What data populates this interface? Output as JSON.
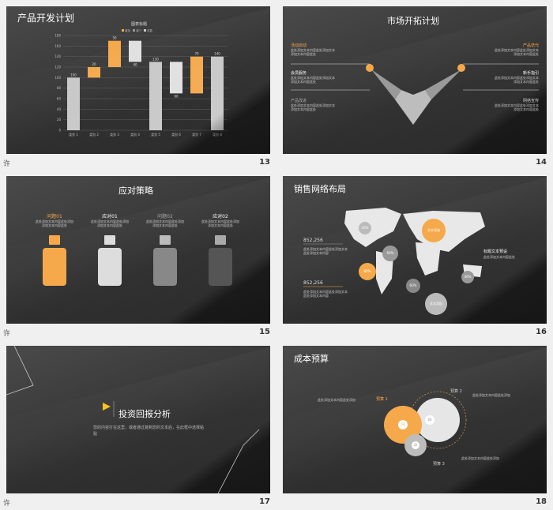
{
  "slides": [
    {
      "number": "13",
      "title": "产品开发计划",
      "footer": "许"
    },
    {
      "number": "14",
      "title": "市场开拓计划",
      "footer": "许"
    },
    {
      "number": "15",
      "title": "应对策略",
      "footer": "许"
    },
    {
      "number": "16",
      "title": "销售网络布局",
      "footer": "许"
    },
    {
      "number": "17",
      "title": "投资回报分析",
      "footer": "许"
    },
    {
      "number": "18",
      "title": "成本预算",
      "footer": "许"
    }
  ],
  "chart_data": {
    "type": "bar",
    "title": "图表标题",
    "legend": [
      "增加",
      "减少",
      "总数"
    ],
    "categories": [
      "类别 1",
      "类别 2",
      "类别 3",
      "类别 4",
      "类别 5",
      "类别 6",
      "类别 7",
      "类别 8"
    ],
    "labels": [
      "100",
      "20",
      "50",
      "40",
      "130",
      "60",
      "70",
      "140"
    ],
    "yticks": [
      "0",
      "20",
      "40",
      "60",
      "80",
      "100",
      "120",
      "140",
      "160",
      "180"
    ],
    "ylim": [
      0,
      180
    ]
  },
  "market": {
    "left_items": [
      {
        "title": "活动启动",
        "desc1": "此处添加文本内容此处添加文本",
        "desc2": "添加文本内容此处"
      },
      {
        "title": "会员服务",
        "desc1": "此处添加文本内容此处添加文本",
        "desc2": "添加文本内容此处"
      },
      {
        "title": "产品改进",
        "desc1": "此处添加文本内容此处添加文本",
        "desc2": "添加文本内容此处"
      }
    ],
    "right_items": [
      {
        "title": "产品迭代",
        "desc1": "此处添加文本内容此处添加文本",
        "desc2": "添加文本内容此处"
      },
      {
        "title": "新手指引",
        "desc1": "此处添加文本内容此处添加文本",
        "desc2": "添加文本内容此处"
      },
      {
        "title": "网络宣传",
        "desc1": "此处添加文本内容此处添加文本",
        "desc2": "添加文本内容此处"
      }
    ]
  },
  "strategy": {
    "items": [
      {
        "title": "问题01",
        "desc1": "此处添加文本内容此处添加",
        "desc2": "添加文本内容此处"
      },
      {
        "title": "应对01",
        "desc1": "此处添加文本内容此处添加",
        "desc2": "添加文本内容此处"
      },
      {
        "title": "问题02",
        "desc1": "此处添加文本内容此处添加",
        "desc2": "添加文本内容此处"
      },
      {
        "title": "应对02",
        "desc1": "此处添加文本内容此处添加",
        "desc2": "添加文本内容此处"
      }
    ]
  },
  "network": {
    "value1": "852,256",
    "value2": "852,256",
    "desc": "此处添加文本内容此处添加文本",
    "desc2": "此处添加文本内容",
    "right_title": "标题文本预设",
    "right_desc": "此处添加文本内容此处",
    "bubbles": [
      "40%",
      "60%",
      "80%",
      "文本添加",
      "60%",
      "40%",
      "文本添加"
    ]
  },
  "roi": {
    "text": "您的内容打在这里，或者通过复制您的文本后，在此框中选择粘贴"
  },
  "budget": {
    "labels": [
      "预算 1",
      "预算 2",
      "预算 3"
    ],
    "values": [
      "54",
      "68",
      "42"
    ],
    "desc": "此处添加文本内容此处添加"
  }
}
